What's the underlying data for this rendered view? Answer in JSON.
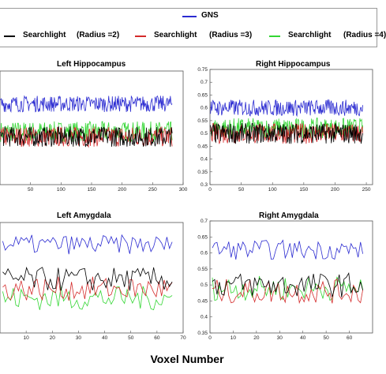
{
  "legend": {
    "gns": {
      "label": "GNS",
      "color": "#2b2bd1"
    },
    "sl2": {
      "label": "Searchlight",
      "param": "(Radius =2)",
      "color": "#000000"
    },
    "sl3": {
      "label": "Searchlight",
      "param": "(Radius =3)",
      "color": "#d42a2a"
    },
    "sl4": {
      "label": "Searchlight",
      "param": "(Radius =4)",
      "color": "#33d633"
    }
  },
  "xlabel": "Voxel Number",
  "chart_data": [
    {
      "type": "line",
      "title": "Left Hippocampus",
      "xlim": [
        0,
        300
      ],
      "ylim": [
        0.3,
        0.75
      ],
      "xticks": [
        50,
        100,
        150,
        200,
        250,
        300
      ],
      "yticks": [],
      "n_points": 282,
      "series_levels": {
        "GNS": 0.62,
        "Searchlight (Radius =2)": 0.49,
        "Searchlight (Radius =3)": 0.49,
        "Searchlight (Radius =4)": 0.51
      }
    },
    {
      "type": "line",
      "title": "Right Hippocampus",
      "xlim": [
        0,
        260
      ],
      "ylim": [
        0.3,
        0.75
      ],
      "xticks": [
        0,
        50,
        100,
        150,
        200,
        250
      ],
      "yticks": [
        0.3,
        0.35,
        0.4,
        0.45,
        0.5,
        0.55,
        0.6,
        0.65,
        0.7,
        0.75
      ],
      "n_points": 262,
      "series_levels": {
        "GNS": 0.6,
        "Searchlight (Radius =2)": 0.5,
        "Searchlight (Radius =3)": 0.5,
        "Searchlight (Radius =4)": 0.52
      }
    },
    {
      "type": "line",
      "title": "Left Amygdala",
      "xlim": [
        0,
        70
      ],
      "ylim": [
        0.35,
        0.7
      ],
      "xticks": [
        10,
        20,
        30,
        40,
        50,
        60,
        70
      ],
      "yticks": [],
      "n_points": 65,
      "series_levels": {
        "GNS": 0.63,
        "Searchlight (Radius =2)": 0.52,
        "Searchlight (Radius =3)": 0.49,
        "Searchlight (Radius =4)": 0.46
      }
    },
    {
      "type": "line",
      "title": "Right Amygdala",
      "xlim": [
        0,
        70
      ],
      "ylim": [
        0.35,
        0.7
      ],
      "xticks": [
        0,
        10,
        20,
        30,
        40,
        50,
        60
      ],
      "yticks": [
        0.35,
        0.4,
        0.45,
        0.5,
        0.55,
        0.6,
        0.65,
        0.7
      ],
      "n_points": 65,
      "series_levels": {
        "GNS": 0.61,
        "Searchlight (Radius =2)": 0.5,
        "Searchlight (Radius =3)": 0.48,
        "Searchlight (Radius =4)": 0.49
      }
    }
  ]
}
